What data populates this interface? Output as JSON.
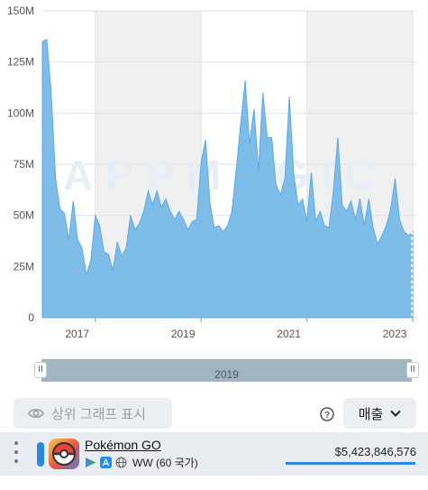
{
  "chart_data": {
    "type": "area",
    "title": "",
    "xlabel": "",
    "ylabel": "",
    "y_tick_labels": [
      "150M",
      "125M",
      "100M",
      "75M",
      "50M",
      "25M",
      "0"
    ],
    "ylim": [
      0,
      150000000
    ],
    "x_tick_labels": [
      "2017",
      "2019",
      "2021",
      "2023"
    ],
    "xlim": [
      "2016-07-01",
      "2023-08-01"
    ],
    "grid": true,
    "watermark": "APPMAGIC",
    "series": [
      {
        "x": [
          "2016-07",
          "2016-08",
          "2016-09",
          "2016-10",
          "2016-11",
          "2016-12",
          "2017-01",
          "2017-02",
          "2017-03",
          "2017-04",
          "2017-05",
          "2017-06",
          "2017-07",
          "2017-08",
          "2017-09",
          "2017-10",
          "2017-11",
          "2017-12",
          "2018-01",
          "2018-02",
          "2018-03",
          "2018-04",
          "2018-05",
          "2018-06",
          "2018-07",
          "2018-08",
          "2018-09",
          "2018-10",
          "2018-11",
          "2018-12",
          "2019-01",
          "2019-02",
          "2019-03",
          "2019-04",
          "2019-05",
          "2019-06",
          "2019-07",
          "2019-08",
          "2019-09",
          "2019-10",
          "2019-11",
          "2019-12",
          "2020-01",
          "2020-02",
          "2020-03",
          "2020-04",
          "2020-05",
          "2020-06",
          "2020-07",
          "2020-08",
          "2020-09",
          "2020-10",
          "2020-11",
          "2020-12",
          "2021-01",
          "2021-02",
          "2021-03",
          "2021-04",
          "2021-05",
          "2021-06",
          "2021-07",
          "2021-08",
          "2021-09",
          "2021-10",
          "2021-11",
          "2021-12",
          "2022-01",
          "2022-02",
          "2022-03",
          "2022-04",
          "2022-05",
          "2022-06",
          "2022-07",
          "2022-08",
          "2022-09",
          "2022-10",
          "2022-11",
          "2022-12",
          "2023-01",
          "2023-02",
          "2023-03",
          "2023-04",
          "2023-05",
          "2023-06",
          "2023-07"
        ],
        "values": [
          135,
          136,
          110,
          68,
          53,
          51,
          38,
          57,
          38,
          34,
          21,
          28,
          50,
          45,
          32,
          31,
          23,
          37,
          30,
          34,
          50,
          43,
          46,
          52,
          62,
          55,
          62,
          54,
          58,
          52,
          48,
          52,
          48,
          43,
          47,
          48,
          76,
          87,
          56,
          44,
          45,
          42,
          45,
          52,
          73,
          95,
          116,
          85,
          102,
          72,
          110,
          88,
          88,
          65,
          60,
          68,
          108,
          70,
          55,
          58,
          47,
          71,
          47,
          52,
          45,
          44,
          62,
          88,
          55,
          52,
          57,
          48,
          58,
          45,
          58,
          44,
          36,
          40,
          45,
          53,
          68,
          48,
          42,
          40,
          42
        ]
      }
    ]
  },
  "scroller": {
    "year_label": "2019",
    "left_handle": "II",
    "right_handle": "II"
  },
  "controls": {
    "top_graph_label": "상위 그래프 표시",
    "metric_label": "매출"
  },
  "app_row": {
    "name": "Pokémon GO",
    "region": "WW (60 국가)",
    "revenue": "$5,423,846,576",
    "revenue_share": 1.0
  },
  "colors": {
    "area_fill": "#7fbde9",
    "area_line": "#5aa9e6",
    "shade": "#f0f0f0",
    "accent": "#2b86e4"
  }
}
